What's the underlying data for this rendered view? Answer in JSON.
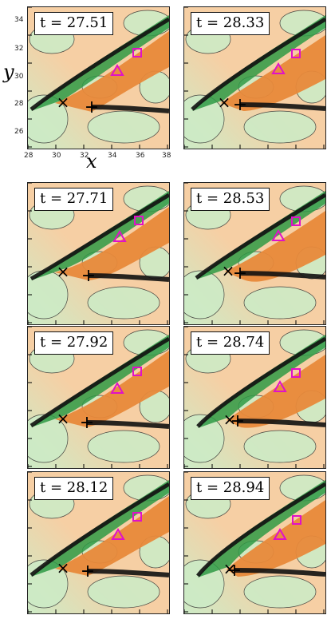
{
  "figure": {
    "x_axis_label": "x",
    "y_axis_label": "y",
    "x_ticks": [
      "28",
      "30",
      "32",
      "34",
      "36",
      "38"
    ],
    "y_ticks": [
      "34",
      "32",
      "30",
      "28",
      "26"
    ],
    "colors": {
      "orange": "#e8893a",
      "light_orange": "#f6cfa4",
      "green": "#2f9a45",
      "light_green": "#cdebc6",
      "ridge": "#111111",
      "marker_magenta": "#e011c8"
    },
    "marker_symbols": {
      "cross_x": "×",
      "cross_plus": "+",
      "triangle": "△",
      "square": "□"
    }
  },
  "panels": [
    {
      "t_label": "t = 27.51"
    },
    {
      "t_label": "t = 28.33"
    },
    {
      "t_label": "t = 27.71"
    },
    {
      "t_label": "t = 28.53"
    },
    {
      "t_label": "t = 27.92"
    },
    {
      "t_label": "t = 28.74"
    },
    {
      "t_label": "t = 28.12"
    },
    {
      "t_label": "t = 28.94"
    }
  ]
}
